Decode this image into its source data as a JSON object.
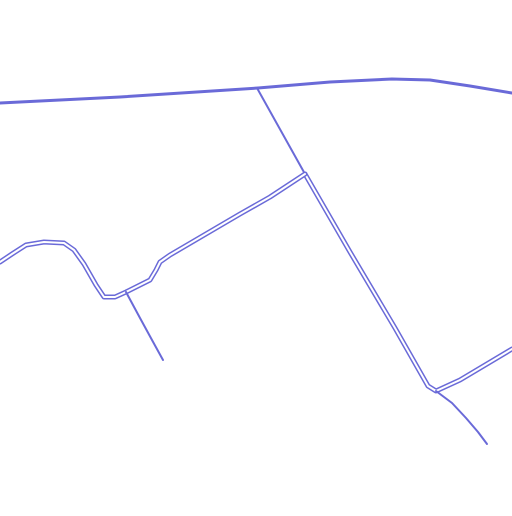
{
  "map": {
    "background_color": "#ffffff",
    "road_color": "#6a6ad8",
    "road_fill_color": "#ffffff",
    "labels": []
  }
}
